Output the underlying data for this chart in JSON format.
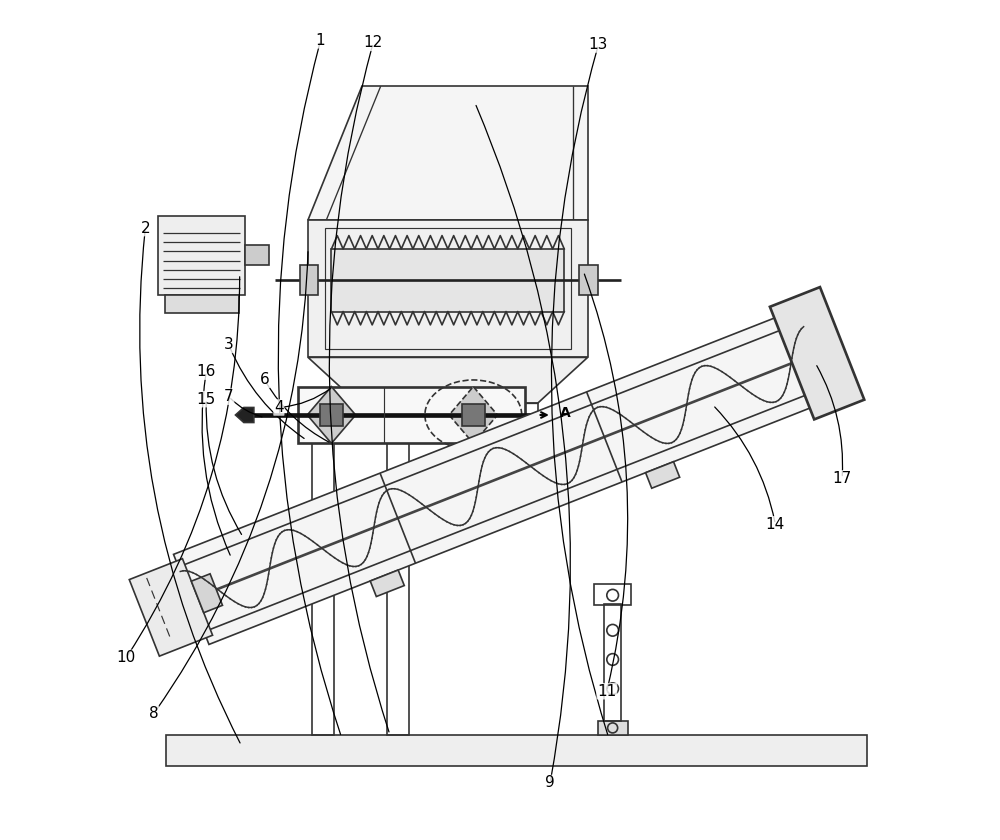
{
  "bg_color": "#ffffff",
  "line_color": "#333333",
  "lw": 1.2,
  "figsize": [
    10.0,
    8.4
  ],
  "dpi": 100
}
